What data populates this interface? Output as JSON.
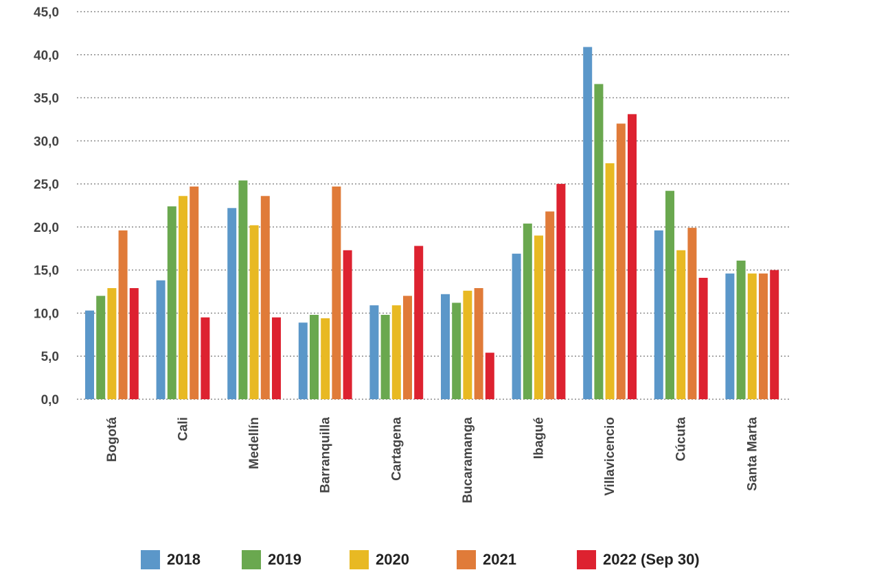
{
  "chart_data": {
    "type": "bar",
    "title": "",
    "xlabel": "",
    "ylabel": "",
    "ylim": [
      0,
      45
    ],
    "y_ticks": [
      "0,0",
      "5,0",
      "10,0",
      "15,0",
      "20,0",
      "25,0",
      "30,0",
      "35,0",
      "40,0",
      "45,0"
    ],
    "y_tick_values": [
      0,
      5,
      10,
      15,
      20,
      25,
      30,
      35,
      40,
      45
    ],
    "grid": true,
    "legend_position": "bottom",
    "categories": [
      "Bogotá",
      "Cali",
      "Medellín",
      "Barranquilla",
      "Cartagena",
      "Bucaramanga",
      "Ibagué",
      "Villavicencio",
      "Cúcuta",
      "Santa Marta"
    ],
    "series": [
      {
        "name": "2018",
        "color": "#5b97c9",
        "values": [
          10.3,
          13.8,
          22.2,
          8.9,
          10.9,
          12.2,
          16.9,
          40.9,
          19.6,
          14.6
        ]
      },
      {
        "name": "2019",
        "color": "#6aa84f",
        "values": [
          12.0,
          22.4,
          25.4,
          9.8,
          9.8,
          11.2,
          20.4,
          36.6,
          24.2,
          16.1
        ]
      },
      {
        "name": "2020",
        "color": "#e8b923",
        "values": [
          12.9,
          23.6,
          20.2,
          9.4,
          10.9,
          12.6,
          19.0,
          27.4,
          17.3,
          14.6
        ]
      },
      {
        "name": "2021",
        "color": "#e07b39",
        "values": [
          19.6,
          24.7,
          23.6,
          24.7,
          12.0,
          12.9,
          21.8,
          32.0,
          19.9,
          14.6
        ]
      },
      {
        "name": "2022 (Sep 30)",
        "color": "#dd2230",
        "values": [
          12.9,
          9.5,
          9.5,
          17.3,
          17.8,
          5.4,
          25.0,
          33.1,
          14.1,
          15.0
        ]
      }
    ]
  }
}
